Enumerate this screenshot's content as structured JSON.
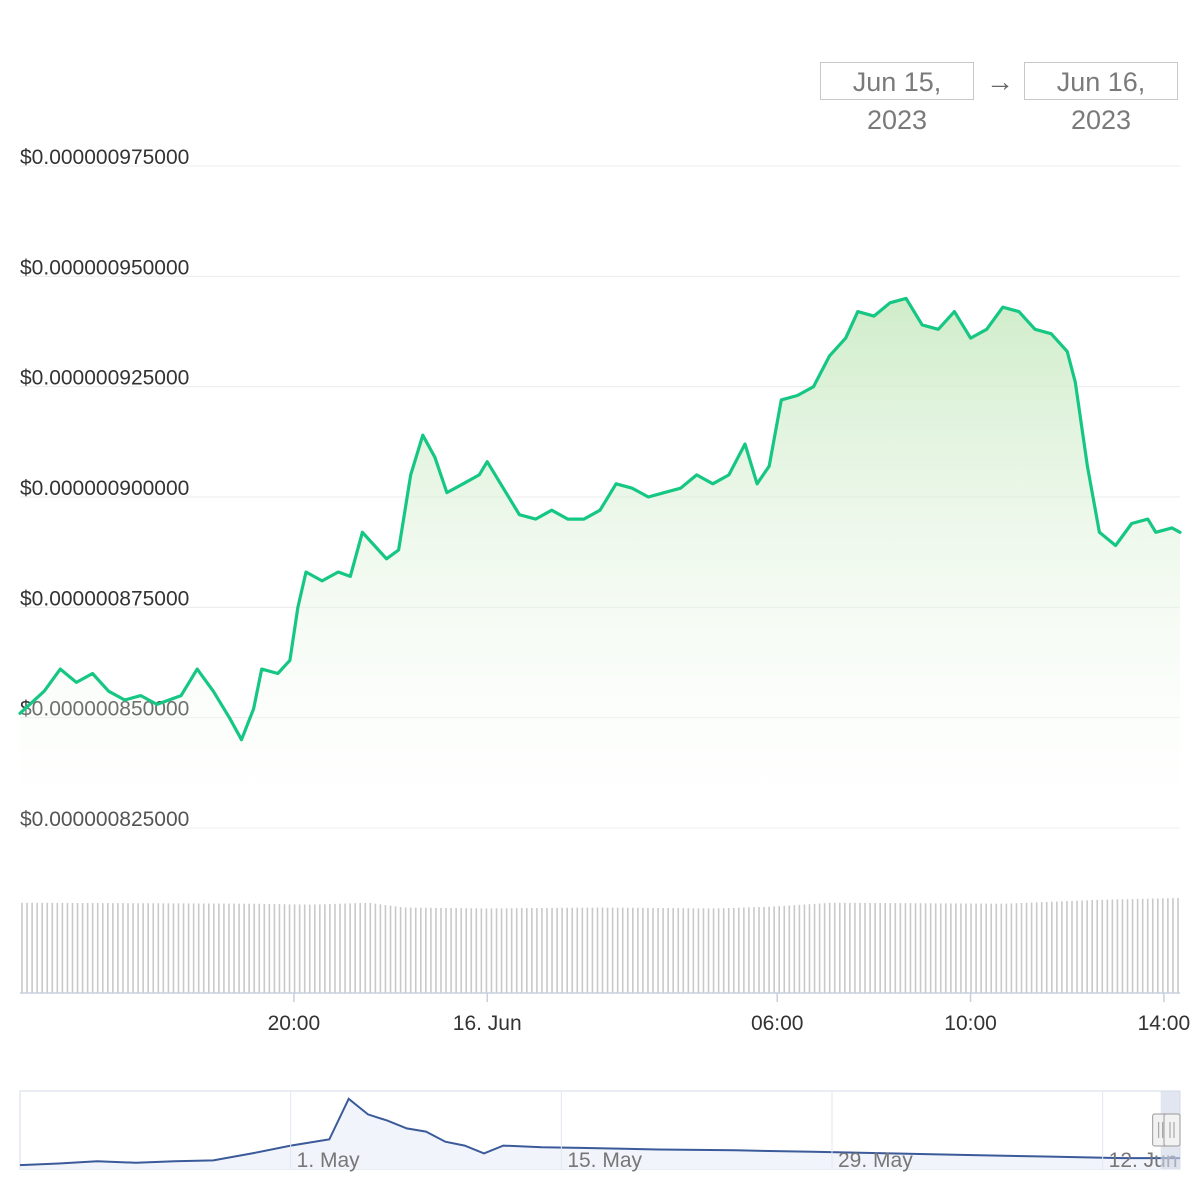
{
  "range_selector": {
    "from": "Jun 15, 2023",
    "arrow": "→",
    "to": "Jun 16, 2023"
  },
  "colors": {
    "price_line": "#16c784",
    "area_top": "#c7e9c0",
    "volume": "#c9c9c9",
    "navigator_line": "#3a5a9a",
    "navigator_fill": "#f2f4fb",
    "handle": "#cfd6e6"
  },
  "chart_data": {
    "type": "line",
    "title": "",
    "xlabel": "",
    "ylabel": "",
    "y_tick_labels": [
      "$0.000000975000",
      "$0.000000950000",
      "$0.000000925000",
      "$0.000000900000",
      "$0.000000875000",
      "$0.000000850000",
      "$0.000000825000"
    ],
    "y_ticks": [
      9.75e-07,
      9.5e-07,
      9.25e-07,
      9e-07,
      8.75e-07,
      8.5e-07,
      8.25e-07
    ],
    "ylim": [
      8.25e-07,
      9.75e-07
    ],
    "x_range": [
      "2023-06-15 14:20",
      "2023-06-16 14:20"
    ],
    "x_ticks": [
      {
        "label": "20:00",
        "time": "2023-06-15 20:00"
      },
      {
        "label": "16. Jun",
        "time": "2023-06-16 00:00"
      },
      {
        "label": "06:00",
        "time": "2023-06-16 06:00"
      },
      {
        "label": "10:00",
        "time": "2023-06-16 10:00"
      },
      {
        "label": "14:00",
        "time": "2023-06-16 14:00"
      }
    ],
    "grid": true,
    "legend": "none",
    "series": [
      {
        "points": [
          [
            "2023-06-15 14:20",
            8.51e-07
          ],
          [
            "2023-06-15 14:50",
            8.56e-07
          ],
          [
            "2023-06-15 15:10",
            8.61e-07
          ],
          [
            "2023-06-15 15:30",
            8.58e-07
          ],
          [
            "2023-06-15 15:50",
            8.6e-07
          ],
          [
            "2023-06-15 16:10",
            8.56e-07
          ],
          [
            "2023-06-15 16:30",
            8.54e-07
          ],
          [
            "2023-06-15 16:50",
            8.55e-07
          ],
          [
            "2023-06-15 17:10",
            8.53e-07
          ],
          [
            "2023-06-15 17:40",
            8.55e-07
          ],
          [
            "2023-06-15 18:00",
            8.61e-07
          ],
          [
            "2023-06-15 18:20",
            8.56e-07
          ],
          [
            "2023-06-15 18:40",
            8.5e-07
          ],
          [
            "2023-06-15 18:55",
            8.45e-07
          ],
          [
            "2023-06-15 19:10",
            8.52e-07
          ],
          [
            "2023-06-15 19:20",
            8.61e-07
          ],
          [
            "2023-06-15 19:40",
            8.6e-07
          ],
          [
            "2023-06-15 19:55",
            8.63e-07
          ],
          [
            "2023-06-15 20:05",
            8.75e-07
          ],
          [
            "2023-06-15 20:15",
            8.83e-07
          ],
          [
            "2023-06-15 20:35",
            8.81e-07
          ],
          [
            "2023-06-15 20:55",
            8.83e-07
          ],
          [
            "2023-06-15 21:10",
            8.82e-07
          ],
          [
            "2023-06-15 21:25",
            8.92e-07
          ],
          [
            "2023-06-15 21:40",
            8.89e-07
          ],
          [
            "2023-06-15 21:55",
            8.86e-07
          ],
          [
            "2023-06-15 22:10",
            8.88e-07
          ],
          [
            "2023-06-15 22:25",
            9.05e-07
          ],
          [
            "2023-06-15 22:40",
            9.14e-07
          ],
          [
            "2023-06-15 22:55",
            9.09e-07
          ],
          [
            "2023-06-15 23:10",
            9.01e-07
          ],
          [
            "2023-06-15 23:30",
            9.03e-07
          ],
          [
            "2023-06-15 23:50",
            9.05e-07
          ],
          [
            "2023-06-16 00:00",
            9.08e-07
          ],
          [
            "2023-06-16 00:20",
            9.02e-07
          ],
          [
            "2023-06-16 00:40",
            8.96e-07
          ],
          [
            "2023-06-16 01:00",
            8.95e-07
          ],
          [
            "2023-06-16 01:20",
            8.97e-07
          ],
          [
            "2023-06-16 01:40",
            8.95e-07
          ],
          [
            "2023-06-16 02:00",
            8.95e-07
          ],
          [
            "2023-06-16 02:20",
            8.97e-07
          ],
          [
            "2023-06-16 02:40",
            9.03e-07
          ],
          [
            "2023-06-16 03:00",
            9.02e-07
          ],
          [
            "2023-06-16 03:20",
            9e-07
          ],
          [
            "2023-06-16 03:40",
            9.01e-07
          ],
          [
            "2023-06-16 04:00",
            9.02e-07
          ],
          [
            "2023-06-16 04:20",
            9.05e-07
          ],
          [
            "2023-06-16 04:40",
            9.03e-07
          ],
          [
            "2023-06-16 05:00",
            9.05e-07
          ],
          [
            "2023-06-16 05:20",
            9.12e-07
          ],
          [
            "2023-06-16 05:35",
            9.03e-07
          ],
          [
            "2023-06-16 05:50",
            9.07e-07
          ],
          [
            "2023-06-16 06:05",
            9.22e-07
          ],
          [
            "2023-06-16 06:25",
            9.23e-07
          ],
          [
            "2023-06-16 06:45",
            9.25e-07
          ],
          [
            "2023-06-16 07:05",
            9.32e-07
          ],
          [
            "2023-06-16 07:25",
            9.36e-07
          ],
          [
            "2023-06-16 07:40",
            9.42e-07
          ],
          [
            "2023-06-16 08:00",
            9.41e-07
          ],
          [
            "2023-06-16 08:20",
            9.44e-07
          ],
          [
            "2023-06-16 08:40",
            9.45e-07
          ],
          [
            "2023-06-16 09:00",
            9.39e-07
          ],
          [
            "2023-06-16 09:20",
            9.38e-07
          ],
          [
            "2023-06-16 09:40",
            9.42e-07
          ],
          [
            "2023-06-16 10:00",
            9.36e-07
          ],
          [
            "2023-06-16 10:20",
            9.38e-07
          ],
          [
            "2023-06-16 10:40",
            9.43e-07
          ],
          [
            "2023-06-16 11:00",
            9.42e-07
          ],
          [
            "2023-06-16 11:20",
            9.38e-07
          ],
          [
            "2023-06-16 11:40",
            9.37e-07
          ],
          [
            "2023-06-16 12:00",
            9.33e-07
          ],
          [
            "2023-06-16 12:10",
            9.26e-07
          ],
          [
            "2023-06-16 12:25",
            9.07e-07
          ],
          [
            "2023-06-16 12:40",
            8.92e-07
          ],
          [
            "2023-06-16 13:00",
            8.89e-07
          ],
          [
            "2023-06-16 13:20",
            8.94e-07
          ],
          [
            "2023-06-16 13:40",
            8.95e-07
          ],
          [
            "2023-06-16 13:50",
            8.92e-07
          ],
          [
            "2023-06-16 14:10",
            8.93e-07
          ],
          [
            "2023-06-16 14:20",
            8.92e-07
          ]
        ]
      }
    ],
    "volume": {
      "type": "bar",
      "count": 230,
      "relative_levels": [
        [
          0.0,
          0.95
        ],
        [
          0.2,
          0.94
        ],
        [
          0.25,
          0.93
        ],
        [
          0.3,
          0.95
        ],
        [
          0.33,
          0.9
        ],
        [
          0.4,
          0.89
        ],
        [
          0.5,
          0.9
        ],
        [
          0.6,
          0.89
        ],
        [
          0.65,
          0.91
        ],
        [
          0.7,
          0.95
        ],
        [
          0.85,
          0.94
        ],
        [
          0.93,
          0.98
        ],
        [
          1.0,
          1.0
        ]
      ]
    },
    "navigator": {
      "type": "area",
      "x_tick_labels": [
        "1. May",
        "15. May",
        "29. May",
        "12. Jun"
      ],
      "x_ticks": [
        "2023-05-01",
        "2023-05-15",
        "2023-05-29",
        "2023-06-12"
      ],
      "x_range": [
        "2023-04-17",
        "2023-06-16"
      ],
      "relative_series": [
        [
          "2023-04-17",
          0.05
        ],
        [
          "2023-04-19",
          0.07
        ],
        [
          "2023-04-21",
          0.1
        ],
        [
          "2023-04-23",
          0.08
        ],
        [
          "2023-04-25",
          0.1
        ],
        [
          "2023-04-27",
          0.11
        ],
        [
          "2023-04-29",
          0.2
        ],
        [
          "2023-05-01",
          0.3
        ],
        [
          "2023-05-03",
          0.38
        ],
        [
          "2023-05-04",
          0.9
        ],
        [
          "2023-05-05",
          0.7
        ],
        [
          "2023-05-06",
          0.62
        ],
        [
          "2023-05-07",
          0.52
        ],
        [
          "2023-05-08",
          0.48
        ],
        [
          "2023-05-09",
          0.35
        ],
        [
          "2023-05-10",
          0.3
        ],
        [
          "2023-05-11",
          0.2
        ],
        [
          "2023-05-12",
          0.3
        ],
        [
          "2023-05-14",
          0.28
        ],
        [
          "2023-05-16",
          0.27
        ],
        [
          "2023-05-20",
          0.25
        ],
        [
          "2023-05-24",
          0.24
        ],
        [
          "2023-05-28",
          0.22
        ],
        [
          "2023-06-01",
          0.2
        ],
        [
          "2023-06-05",
          0.18
        ],
        [
          "2023-06-09",
          0.16
        ],
        [
          "2023-06-13",
          0.14
        ],
        [
          "2023-06-16",
          0.14
        ]
      ],
      "selected_range": [
        "2023-06-15",
        "2023-06-16"
      ]
    }
  }
}
